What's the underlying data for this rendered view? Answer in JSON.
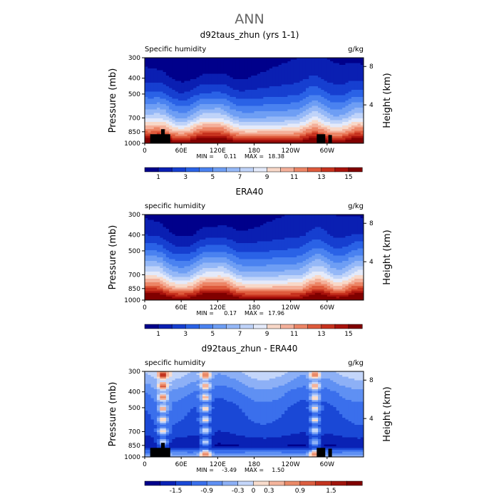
{
  "figure": {
    "title": "ANN",
    "x_ticks": [
      "0",
      "60E",
      "120E",
      "180",
      "120W",
      "60W"
    ],
    "x_tick_lon": [
      0,
      60,
      120,
      180,
      240,
      300
    ],
    "x_range": [
      0,
      360
    ],
    "p_ticks": [
      "300",
      "400",
      "500",
      "700",
      "850",
      "1000"
    ],
    "p_values": [
      300,
      400,
      500,
      700,
      850,
      1000
    ],
    "p_range": [
      300,
      1000
    ],
    "y_label_left": "Pressure (mb)",
    "y_label_right": "Height (km)",
    "h_ticks": [
      "8",
      "4"
    ],
    "h_values": [
      8,
      4
    ]
  },
  "chart_data": [
    {
      "type": "heatmap",
      "title": "d92taus_zhun (yrs 1-1)",
      "variable_label": "Specific humidity",
      "units": "g/kg",
      "stats": {
        "min_label": "MIN =",
        "min": "0.11",
        "max_label": "MAX =",
        "max": "18.38"
      },
      "colorbar": {
        "labels": [
          "1",
          "3",
          "5",
          "7",
          "9",
          "11",
          "13",
          "15"
        ],
        "levels": [
          1,
          2,
          3,
          4,
          5,
          6,
          7,
          8,
          9,
          10,
          11,
          12,
          13,
          14,
          15
        ],
        "colors": [
          "#00008b",
          "#0a1fb2",
          "#163fd0",
          "#2a62e6",
          "#4a82f0",
          "#6e9ef4",
          "#95b8f7",
          "#bfd3f9",
          "#e4eafa",
          "#f8d8c8",
          "#f4b09a",
          "#ec8566",
          "#de5a3c",
          "#c7321e",
          "#a8120c",
          "#800000"
        ]
      },
      "vertical_profile_q": {
        "pressure": [
          300,
          400,
          500,
          700,
          850,
          1000
        ],
        "q": [
          0.4,
          1.1,
          2.4,
          6.0,
          10.0,
          15.5
        ]
      },
      "moist_regions_lon": [
        25,
        95,
        125,
        280,
        350
      ]
    },
    {
      "type": "heatmap",
      "title": "ERA40",
      "variable_label": "specific humidity",
      "units": "g/kg",
      "stats": {
        "min_label": "MIN =",
        "min": "0.17",
        "max_label": "MAX =",
        "max": "17.96"
      },
      "colorbar": {
        "labels": [
          "1",
          "3",
          "5",
          "7",
          "9",
          "11",
          "13",
          "15"
        ],
        "levels": [
          1,
          2,
          3,
          4,
          5,
          6,
          7,
          8,
          9,
          10,
          11,
          12,
          13,
          14,
          15
        ],
        "colors": [
          "#00008b",
          "#0a1fb2",
          "#163fd0",
          "#2a62e6",
          "#4a82f0",
          "#6e9ef4",
          "#95b8f7",
          "#bfd3f9",
          "#e4eafa",
          "#f8d8c8",
          "#f4b09a",
          "#ec8566",
          "#de5a3c",
          "#c7321e",
          "#a8120c",
          "#800000"
        ]
      },
      "vertical_profile_q": {
        "pressure": [
          300,
          400,
          500,
          700,
          850,
          1000
        ],
        "q": [
          0.5,
          1.3,
          2.8,
          6.5,
          10.5,
          16.0
        ]
      },
      "moist_regions_lon": [
        20,
        100,
        130,
        285,
        350
      ]
    },
    {
      "type": "heatmap",
      "title": "d92taus_zhun - ERA40",
      "variable_label": "specific humidity",
      "units": "g/kg",
      "stats": {
        "min_label": "MIN =",
        "min": "-3.49",
        "max_label": "MAX =",
        "max": "1.50"
      },
      "colorbar": {
        "labels": [
          "-1.5",
          "-0.9",
          "-0.3",
          "0",
          "0.3",
          "0.9",
          "1.5"
        ],
        "levels": [
          -1.8,
          -1.5,
          -1.2,
          -0.9,
          -0.6,
          -0.3,
          0,
          0.3,
          0.6,
          0.9,
          1.2,
          1.5,
          1.8
        ],
        "colors": [
          "#00008b",
          "#0a22b5",
          "#1a48d6",
          "#3a6fec",
          "#5f90f3",
          "#8db0f6",
          "#c4d6fa",
          "#f8dccc",
          "#f4b49c",
          "#ea8a68",
          "#db5e40",
          "#c3341f",
          "#a0140c",
          "#800000"
        ]
      },
      "vertical_profile_q": {
        "pressure": [
          300,
          400,
          500,
          700,
          850,
          1000
        ],
        "q": [
          -0.3,
          -0.9,
          -1.2,
          -1.4,
          -1.8,
          -0.3
        ]
      },
      "moist_regions_lon": [
        30,
        100,
        280
      ]
    }
  ]
}
